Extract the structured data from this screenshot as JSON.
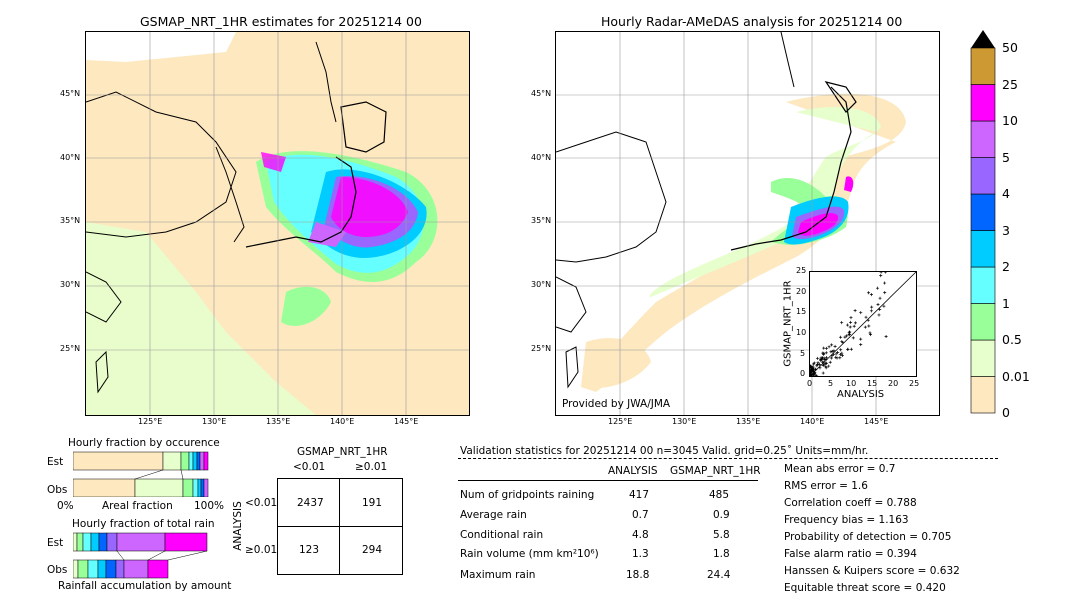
{
  "left_map": {
    "title": "GSMAP_NRT_1HR estimates for 20251214 00",
    "lat_ticks": [
      "45°N",
      "40°N",
      "35°N",
      "30°N",
      "25°N"
    ],
    "lon_ticks": [
      "125°E",
      "130°E",
      "135°E",
      "140°E",
      "145°E"
    ]
  },
  "right_map": {
    "title": "Hourly Radar-AMeDAS analysis for 20251214 00",
    "lat_ticks": [
      "45°N",
      "40°N",
      "35°N",
      "30°N",
      "25°N"
    ],
    "lon_ticks": [
      "125°E",
      "130°E",
      "135°E",
      "140°E",
      "145°E"
    ],
    "credit": "Provided by JWA/JMA"
  },
  "scatter": {
    "xlabel": "ANALYSIS",
    "ylabel": "GSMAP_NRT_1HR",
    "ticks": [
      "0",
      "5",
      "10",
      "15",
      "20",
      "25"
    ]
  },
  "colorbar": {
    "levels": [
      "0",
      "0.01",
      "0.5",
      "1",
      "2",
      "3",
      "4",
      "5",
      "10",
      "25",
      "50"
    ],
    "colors": [
      "#fde8c0",
      "#e6ffcc",
      "#99ff99",
      "#66ffff",
      "#00ccff",
      "#0066ff",
      "#9966ff",
      "#cc66ff",
      "#ff00ff",
      "#cc9933"
    ],
    "extend_color": "#000000"
  },
  "occurrence": {
    "title": "Hourly fraction by occurence",
    "rows": [
      "Est",
      "Obs"
    ],
    "axis_left": "0%",
    "axis_mid": "Areal fraction",
    "axis_right": "100%"
  },
  "total_rain": {
    "title": "Hourly fraction of total rain",
    "rows": [
      "Est",
      "Obs"
    ],
    "caption": "Rainfall accumulation by amount"
  },
  "contingency": {
    "col_header": "GSMAP_NRT_1HR",
    "col_lt": "<0.01",
    "col_ge": "≥0.01",
    "row_header": "ANALYSIS",
    "row_lt": "<0.01",
    "row_ge": "≥0.01",
    "cells": [
      "2437",
      "191",
      "123",
      "294"
    ]
  },
  "validation": {
    "header": "Validation statistics for 20251214 00  n=3045 Valid. grid=0.25˚ Units=mm/hr.",
    "col1": "ANALYSIS",
    "col2": "GSMAP_NRT_1HR",
    "rows": [
      {
        "label": "Num of gridpoints raining",
        "a": "417",
        "b": "485"
      },
      {
        "label": "Average rain",
        "a": "0.7",
        "b": "0.9"
      },
      {
        "label": "Conditional rain",
        "a": "4.8",
        "b": "5.8"
      },
      {
        "label": "Rain volume (mm km²10⁶)",
        "a": "1.3",
        "b": "1.8"
      },
      {
        "label": "Maximum rain",
        "a": "18.8",
        "b": "24.4"
      }
    ],
    "scores": [
      "Mean abs error =    0.7",
      "RMS error =    1.6",
      "Correlation coeff =  0.788",
      "Frequency bias =  1.163",
      "Probability of detection =  0.705",
      "False alarm ratio =  0.394",
      "Hanssen & Kuipers score =  0.632",
      "Equitable threat score =  0.420"
    ]
  },
  "chart_data": [
    {
      "type": "heatmap",
      "title": "GSMAP_NRT_1HR estimates for 20251214 00",
      "x_range_deg": [
        120,
        150
      ],
      "y_range_deg": [
        20,
        50
      ]
    },
    {
      "type": "heatmap",
      "title": "Hourly Radar-AMeDAS analysis for 20251214 00",
      "x_range_deg": [
        120,
        150
      ],
      "y_range_deg": [
        20,
        50
      ]
    },
    {
      "type": "scatter",
      "xlabel": "ANALYSIS",
      "ylabel": "GSMAP_NRT_1HR",
      "xlim": [
        0,
        25
      ],
      "ylim": [
        0,
        25
      ]
    },
    {
      "type": "table",
      "title": "contingency",
      "values": [
        [
          2437,
          191
        ],
        [
          123,
          294
        ]
      ]
    }
  ]
}
